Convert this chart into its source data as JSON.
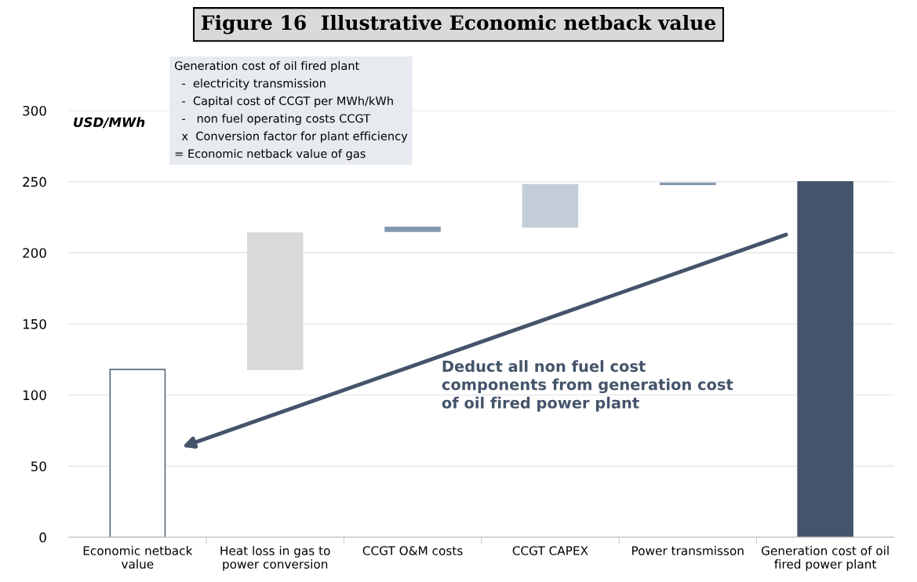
{
  "chart_data": {
    "type": "bar",
    "title": "Figure 16  Illustrative Economic netback value",
    "ylabel": "USD/MWh",
    "categories": [
      "Economic netback\nvalue",
      "Heat loss in gas to\npower conversion",
      "CCGT O&M costs",
      "CCGT CAPEX",
      "Power transmisson",
      "Generation cost of oil\nfired power plant"
    ],
    "values": [
      118,
      96,
      3,
      30,
      1,
      250
    ],
    "base": [
      0,
      118,
      215,
      218,
      248,
      0
    ],
    "colors": [
      "#ffffff",
      "#d9d9d9",
      "#8497b0",
      "#c3cdd9",
      "#8497b0",
      "#44546a"
    ],
    "ylim": [
      0,
      300
    ],
    "yticks": [
      0,
      50,
      100,
      150,
      200,
      250,
      300
    ],
    "grid": "y",
    "annotations": [
      "Generation cost of oil fired plant\n  -  electricity transmission\n  -  Capital cost of CCGT per MWh/kWh\n  -   non fuel operating costs CCGT\n  x  Conversion factor for plant efficiency\n= Economic netback value of gas",
      "Deduct all non fuel cost\ncomponents from generation cost\nof oil fired power plant"
    ]
  }
}
